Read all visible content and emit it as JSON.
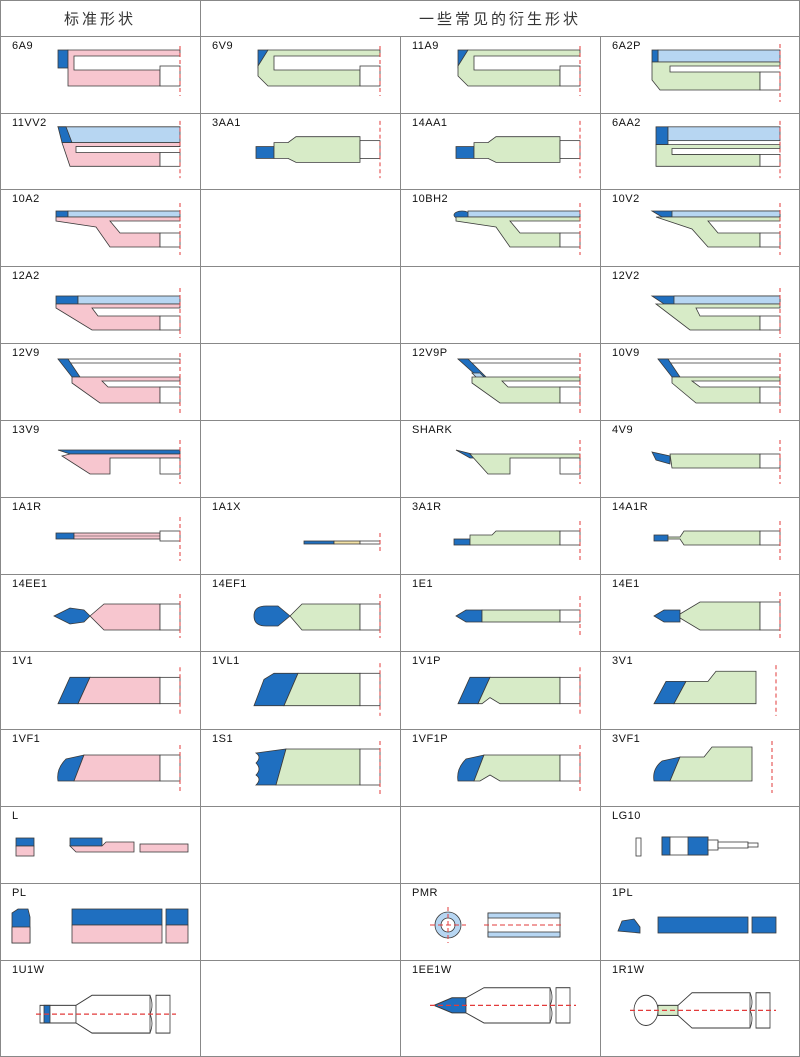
{
  "headers": {
    "standard": "标准形状",
    "derived": "一些常见的衍生形状"
  },
  "colors": {
    "blue": "#1f6fc0",
    "light_blue": "#b7d6f2",
    "pink": "#f7c6cf",
    "green": "#d7ebc7",
    "red_dash": "#e23b3b",
    "outline": "#3a3a3a"
  },
  "rows": [
    [
      "6A9",
      "6V9",
      "11A9",
      "6A2P"
    ],
    [
      "11VV2",
      "3AA1",
      "14AA1",
      "6AA2"
    ],
    [
      "10A2",
      "",
      "10BH2",
      "10V2"
    ],
    [
      "12A2",
      "",
      "",
      "12V2"
    ],
    [
      "12V9",
      "",
      "12V9P",
      "10V9"
    ],
    [
      "13V9",
      "",
      "SHARK",
      "4V9"
    ],
    [
      "1A1R",
      "1A1X",
      "3A1R",
      "14A1R"
    ],
    [
      "14EE1",
      "14EF1",
      "1E1",
      "14E1"
    ],
    [
      "1V1",
      "1VL1",
      "1V1P",
      "3V1"
    ],
    [
      "1VF1",
      "1S1",
      "1VF1P",
      "3VF1"
    ],
    [
      "L",
      "",
      "",
      "LG10"
    ],
    [
      "PL",
      "",
      "PMR",
      "1PL"
    ],
    [
      "1U1W",
      "",
      "1EE1W",
      "1R1W"
    ]
  ]
}
